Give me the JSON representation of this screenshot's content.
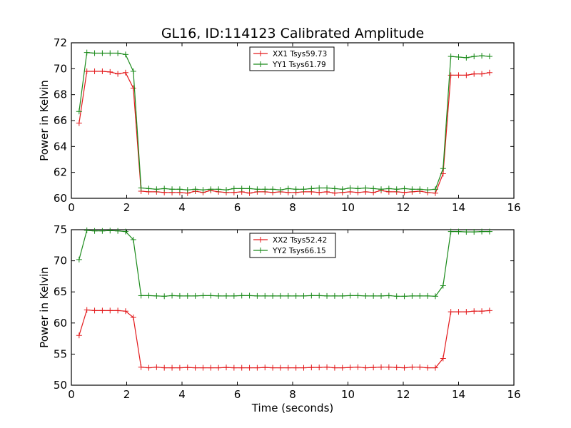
{
  "chart_data": [
    {
      "type": "line",
      "title": "GL16, ID:114123 Calibrated Amplitude",
      "xlabel": "",
      "ylabel": "Power in Kelvin",
      "xlim": [
        0,
        16
      ],
      "ylim": [
        60,
        72
      ],
      "xticks": [
        0,
        2,
        4,
        6,
        8,
        10,
        12,
        14,
        16
      ],
      "yticks": [
        60,
        62,
        64,
        66,
        68,
        70,
        72
      ],
      "grid": false,
      "legend_placement": "top-center",
      "marker": "+",
      "series": [
        {
          "name": "XX1 Tsys59.73",
          "color": "#e31a1c",
          "x": [
            0.28,
            0.56,
            0.84,
            1.12,
            1.4,
            1.68,
            1.96,
            2.24,
            2.52,
            2.8,
            3.08,
            3.36,
            3.64,
            3.92,
            4.2,
            4.48,
            4.76,
            5.04,
            5.32,
            5.6,
            5.88,
            6.16,
            6.44,
            6.72,
            7.0,
            7.28,
            7.56,
            7.84,
            8.12,
            8.4,
            8.68,
            8.96,
            9.24,
            9.52,
            9.8,
            10.08,
            10.36,
            10.64,
            10.92,
            11.2,
            11.48,
            11.76,
            12.04,
            12.32,
            12.6,
            12.88,
            13.16,
            13.44,
            13.72,
            14.0,
            14.28,
            14.56,
            14.84,
            15.12
          ],
          "y": [
            65.8,
            69.8,
            69.8,
            69.8,
            69.75,
            69.6,
            69.7,
            68.5,
            60.55,
            60.5,
            60.5,
            60.45,
            60.45,
            60.45,
            60.4,
            60.55,
            60.45,
            60.6,
            60.5,
            60.45,
            60.45,
            60.5,
            60.4,
            60.5,
            60.5,
            60.45,
            60.5,
            60.45,
            60.45,
            60.5,
            60.5,
            60.45,
            60.5,
            60.4,
            60.45,
            60.5,
            60.45,
            60.5,
            60.45,
            60.6,
            60.5,
            60.5,
            60.45,
            60.5,
            60.55,
            60.45,
            60.4,
            61.9,
            69.5,
            69.5,
            69.5,
            69.6,
            69.6,
            69.7
          ]
        },
        {
          "name": "YY1 Tsys61.79",
          "color": "#1a8a1a",
          "x": [
            0.28,
            0.56,
            0.84,
            1.12,
            1.4,
            1.68,
            1.96,
            2.24,
            2.52,
            2.8,
            3.08,
            3.36,
            3.64,
            3.92,
            4.2,
            4.48,
            4.76,
            5.04,
            5.32,
            5.6,
            5.88,
            6.16,
            6.44,
            6.72,
            7.0,
            7.28,
            7.56,
            7.84,
            8.12,
            8.4,
            8.68,
            8.96,
            9.24,
            9.52,
            9.8,
            10.08,
            10.36,
            10.64,
            10.92,
            11.2,
            11.48,
            11.76,
            12.04,
            12.32,
            12.6,
            12.88,
            13.16,
            13.44,
            13.72,
            14.0,
            14.28,
            14.56,
            14.84,
            15.12
          ],
          "y": [
            66.7,
            71.25,
            71.2,
            71.2,
            71.2,
            71.2,
            71.1,
            69.8,
            60.8,
            60.75,
            60.7,
            60.75,
            60.7,
            60.7,
            60.65,
            60.7,
            60.65,
            60.7,
            60.7,
            60.65,
            60.75,
            60.75,
            60.75,
            60.7,
            60.7,
            60.7,
            60.65,
            60.75,
            60.7,
            60.7,
            60.75,
            60.8,
            60.8,
            60.75,
            60.7,
            60.8,
            60.75,
            60.8,
            60.75,
            60.7,
            60.75,
            60.7,
            60.75,
            60.7,
            60.7,
            60.65,
            60.7,
            62.3,
            70.95,
            70.9,
            70.85,
            70.95,
            71.0,
            70.95
          ]
        }
      ]
    },
    {
      "type": "line",
      "title": "",
      "xlabel": "Time (seconds)",
      "ylabel": "Power in Kelvin",
      "xlim": [
        0,
        16
      ],
      "ylim": [
        50,
        75
      ],
      "xticks": [
        0,
        2,
        4,
        6,
        8,
        10,
        12,
        14,
        16
      ],
      "yticks": [
        50,
        55,
        60,
        65,
        70,
        75
      ],
      "grid": false,
      "legend_placement": "top-center",
      "marker": "+",
      "series": [
        {
          "name": "XX2 Tsys52.42",
          "color": "#e31a1c",
          "x": [
            0.28,
            0.56,
            0.84,
            1.12,
            1.4,
            1.68,
            1.96,
            2.24,
            2.52,
            2.8,
            3.08,
            3.36,
            3.64,
            3.92,
            4.2,
            4.48,
            4.76,
            5.04,
            5.32,
            5.6,
            5.88,
            6.16,
            6.44,
            6.72,
            7.0,
            7.28,
            7.56,
            7.84,
            8.12,
            8.4,
            8.68,
            8.96,
            9.24,
            9.52,
            9.8,
            10.08,
            10.36,
            10.64,
            10.92,
            11.2,
            11.48,
            11.76,
            12.04,
            12.32,
            12.6,
            12.88,
            13.16,
            13.44,
            13.72,
            14.0,
            14.28,
            14.56,
            14.84,
            15.12
          ],
          "y": [
            58.0,
            62.1,
            62.0,
            62.0,
            62.0,
            62.0,
            61.9,
            60.9,
            52.9,
            52.8,
            52.9,
            52.8,
            52.8,
            52.8,
            52.85,
            52.8,
            52.8,
            52.8,
            52.8,
            52.85,
            52.8,
            52.8,
            52.8,
            52.8,
            52.85,
            52.8,
            52.8,
            52.8,
            52.8,
            52.8,
            52.85,
            52.85,
            52.9,
            52.8,
            52.8,
            52.85,
            52.9,
            52.8,
            52.85,
            52.9,
            52.9,
            52.85,
            52.8,
            52.9,
            52.9,
            52.8,
            52.8,
            54.3,
            61.8,
            61.8,
            61.8,
            61.9,
            61.9,
            62.0
          ]
        },
        {
          "name": "YY2 Tsys66.15",
          "color": "#1a8a1a",
          "x": [
            0.28,
            0.56,
            0.84,
            1.12,
            1.4,
            1.68,
            1.96,
            2.24,
            2.52,
            2.8,
            3.08,
            3.36,
            3.64,
            3.92,
            4.2,
            4.48,
            4.76,
            5.04,
            5.32,
            5.6,
            5.88,
            6.16,
            6.44,
            6.72,
            7.0,
            7.28,
            7.56,
            7.84,
            8.12,
            8.4,
            8.68,
            8.96,
            9.24,
            9.52,
            9.8,
            10.08,
            10.36,
            10.64,
            10.92,
            11.2,
            11.48,
            11.76,
            12.04,
            12.32,
            12.6,
            12.88,
            13.16,
            13.44,
            13.72,
            14.0,
            14.28,
            14.56,
            14.84,
            15.12
          ],
          "y": [
            70.2,
            74.9,
            74.8,
            74.8,
            74.85,
            74.8,
            74.7,
            73.4,
            64.4,
            64.4,
            64.35,
            64.3,
            64.4,
            64.35,
            64.35,
            64.35,
            64.4,
            64.4,
            64.35,
            64.35,
            64.35,
            64.4,
            64.4,
            64.35,
            64.35,
            64.35,
            64.35,
            64.35,
            64.35,
            64.35,
            64.4,
            64.4,
            64.35,
            64.35,
            64.35,
            64.4,
            64.4,
            64.35,
            64.35,
            64.35,
            64.4,
            64.3,
            64.3,
            64.35,
            64.35,
            64.35,
            64.3,
            66.0,
            74.7,
            74.7,
            74.65,
            74.65,
            74.7,
            74.7
          ]
        }
      ]
    }
  ]
}
